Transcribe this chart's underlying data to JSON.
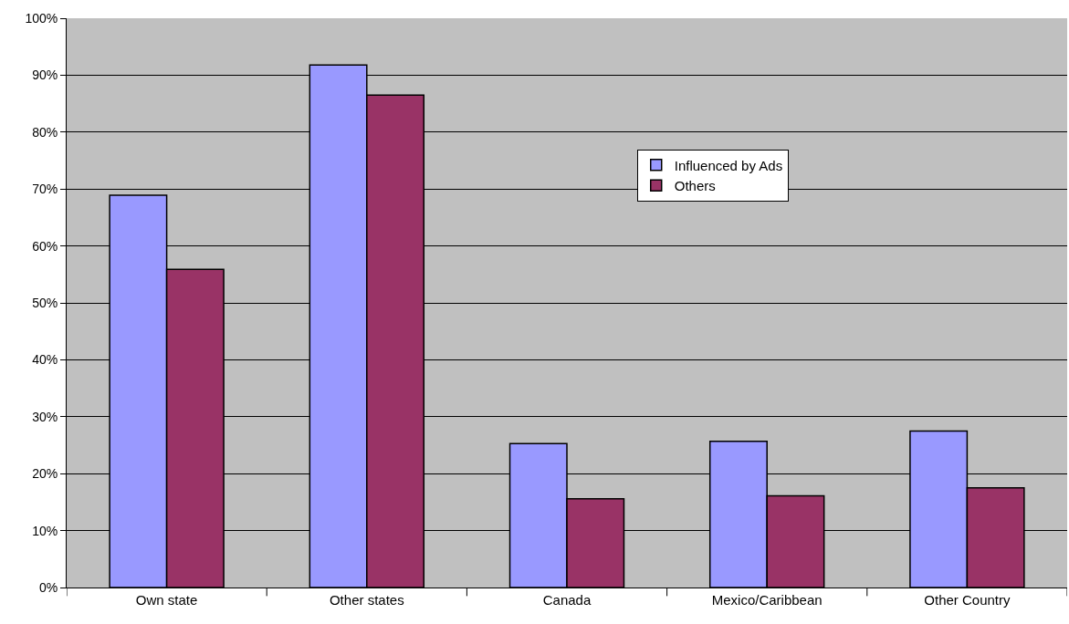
{
  "chart_data": {
    "type": "bar",
    "categories": [
      "Own state",
      "Other states",
      "Canada",
      "Mexico/Caribbean",
      "Other Country"
    ],
    "series": [
      {
        "name": "Influenced by Ads",
        "color": "#9999ff",
        "values": [
          68.9,
          91.8,
          25.3,
          25.7,
          27.5
        ]
      },
      {
        "name": "Others",
        "color": "#993366",
        "values": [
          55.9,
          86.5,
          15.6,
          16.1,
          17.5
        ]
      }
    ],
    "ylim": [
      0,
      100
    ],
    "yticks": [
      {
        "value": 0,
        "label": "0%"
      },
      {
        "value": 10,
        "label": "10%"
      },
      {
        "value": 20,
        "label": "20%"
      },
      {
        "value": 30,
        "label": "30%"
      },
      {
        "value": 40,
        "label": "40%"
      },
      {
        "value": 50,
        "label": "50%"
      },
      {
        "value": 60,
        "label": "60%"
      },
      {
        "value": 70,
        "label": "70%"
      },
      {
        "value": 80,
        "label": "80%"
      },
      {
        "value": 90,
        "label": "90%"
      },
      {
        "value": 100,
        "label": "100%"
      }
    ],
    "grid": "y",
    "legend": "top right"
  }
}
